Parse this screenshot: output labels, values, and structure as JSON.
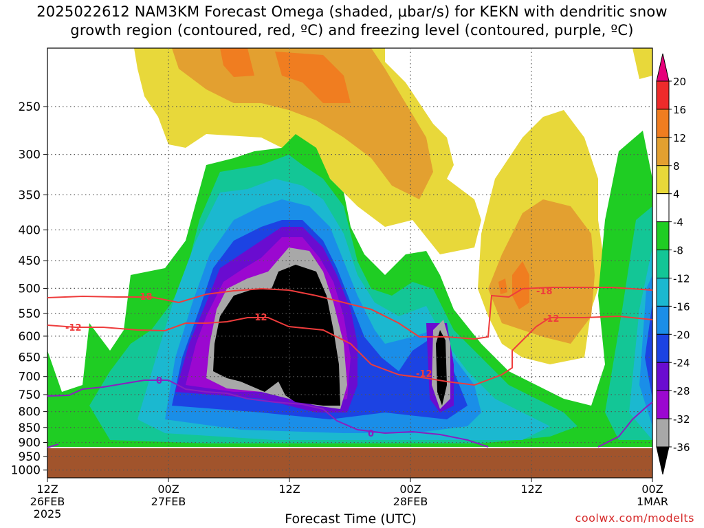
{
  "title": {
    "line1": "2025022612 NAM3KM Forecast Omega (shaded, μbar/s) for KEKN with dendritic snow",
    "line2": "growth region (contoured, red, ºC) and freezing level (contoured, purple, ºC)"
  },
  "watermark": "coolwx.com/modelts",
  "chart_data": {
    "type": "heatmap",
    "title": "2025022612 NAM3KM Forecast Omega (shaded, μbar/s) for KEKN with dendritic snow growth region (contoured, red, ºC) and freezing level (contoured, purple, ºC)",
    "xlabel": "Forecast Time (UTC)",
    "ylabel": "",
    "x_ticks": [
      {
        "label": "12Z",
        "sub1": "26FEB",
        "sub2": "2025",
        "hour": 0
      },
      {
        "label": "00Z",
        "sub1": "27FEB",
        "sub2": "",
        "hour": 12
      },
      {
        "label": "12Z",
        "sub1": "",
        "sub2": "",
        "hour": 24
      },
      {
        "label": "00Z",
        "sub1": "28FEB",
        "sub2": "",
        "hour": 36
      },
      {
        "label": "12Z",
        "sub1": "",
        "sub2": "",
        "hour": 48
      },
      {
        "label": "00Z",
        "sub1": "1MAR",
        "sub2": "",
        "hour": 60
      }
    ],
    "xlim_hours": [
      0,
      60
    ],
    "y_ticks": [
      250,
      300,
      350,
      400,
      450,
      500,
      550,
      600,
      650,
      700,
      750,
      800,
      850,
      900,
      950,
      1000
    ],
    "ylim_hpa": [
      1030,
      200
    ],
    "y_scale": "log-pressure (inverted)",
    "grid": true,
    "colorbar": {
      "labels": [
        "20",
        "16",
        "12",
        "8",
        "4",
        "-4",
        "-8",
        "-12",
        "-16",
        "-20",
        "-24",
        "-28",
        "-32",
        "-36"
      ],
      "colors": [
        "#e6007a",
        "#ee2b2b",
        "#f07d20",
        "#e3a030",
        "#e8d83a",
        "#ffffff",
        "#1fcd23",
        "#13c696",
        "#1bb8d0",
        "#1a8ee8",
        "#1c43e3",
        "#6a0cd0",
        "#9b08d0",
        "#a8a8a8",
        "#000000"
      ]
    },
    "contours": {
      "dendritic_red": [
        "-18",
        "-12"
      ],
      "freezing_purple": [
        "0"
      ]
    },
    "ground_pressure_hpa": 945
  }
}
